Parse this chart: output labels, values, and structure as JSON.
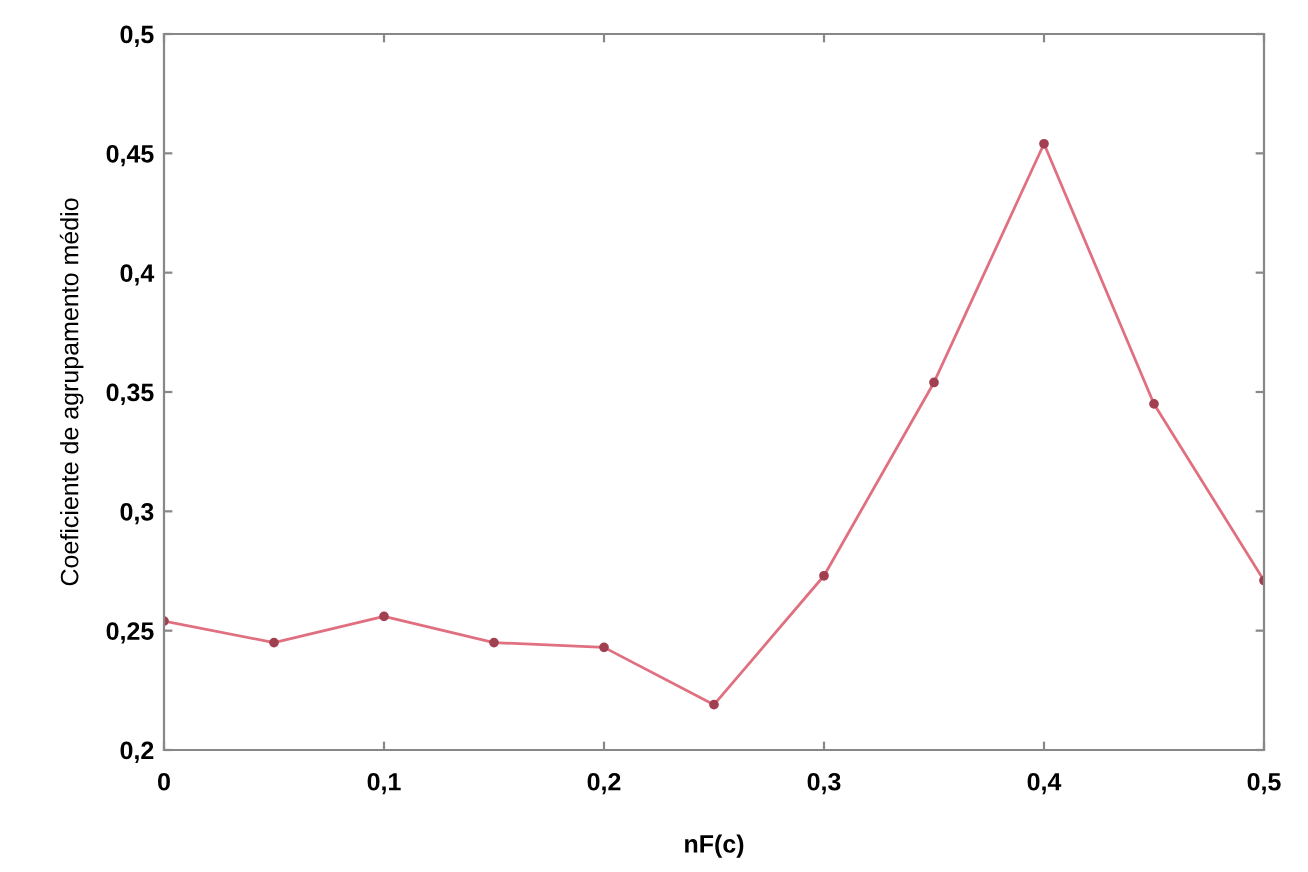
{
  "chart_data": {
    "type": "line",
    "xlabel": "nF(c)",
    "ylabel": "Coeficiente de agrupamento médio",
    "x": [
      0,
      0.05,
      0.1,
      0.15,
      0.2,
      0.25,
      0.3,
      0.35,
      0.4,
      0.45,
      0.5
    ],
    "series": [
      {
        "color": "#e07080",
        "values": [
          0.254,
          0.245,
          0.256,
          0.245,
          0.243,
          0.219,
          0.273,
          0.354,
          0.454,
          0.345,
          0.271
        ]
      }
    ],
    "marker": "circle",
    "line_style": "solid",
    "grid": false,
    "legend": false,
    "xlim": [
      0,
      0.5
    ],
    "xticks": [
      {
        "value": 0,
        "label": "0"
      },
      {
        "value": 0.1,
        "label": "0,1"
      },
      {
        "value": 0.2,
        "label": "0,2"
      },
      {
        "value": 0.3,
        "label": "0,3"
      },
      {
        "value": 0.4,
        "label": "0,4"
      },
      {
        "value": 0.5,
        "label": "0,5"
      }
    ],
    "ylim": [
      0.2,
      0.5
    ],
    "yticks": [
      {
        "value": 0.2,
        "label": "0,2"
      },
      {
        "value": 0.25,
        "label": "0,25"
      },
      {
        "value": 0.3,
        "label": "0,3"
      },
      {
        "value": 0.35,
        "label": "0,35"
      },
      {
        "value": 0.4,
        "label": "0,4"
      },
      {
        "value": 0.45,
        "label": "0,45"
      },
      {
        "value": 0.5,
        "label": "0,5"
      }
    ]
  }
}
